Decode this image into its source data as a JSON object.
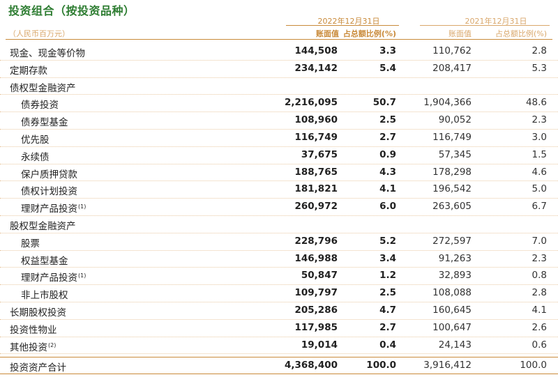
{
  "title": "投资组合（按投资品种）",
  "unit": "（人民币百万元）",
  "year_2022": "2022年12月31日",
  "year_2021": "2021年12月31日",
  "columns": {
    "value_2022": "账面值",
    "pct_2022": "占总额比例(%)",
    "value_2021": "账面值",
    "pct_2021": "占总额比例(%)"
  },
  "rows": [
    {
      "label": "现金、现金等价物",
      "note": "",
      "v1": "144,508",
      "v2": "3.3",
      "v3": "110,762",
      "v4": "2.8"
    },
    {
      "label": "定期存款",
      "note": "",
      "v1": "234,142",
      "v2": "5.4",
      "v3": "208,417",
      "v4": "5.3"
    },
    {
      "label": "债权型金融资产",
      "note": "",
      "v1": "",
      "v2": "",
      "v3": "",
      "v4": ""
    },
    {
      "label": "债券投资",
      "note": "",
      "v1": "2,216,095",
      "v2": "50.7",
      "v3": "1,904,366",
      "v4": "48.6"
    },
    {
      "label": "债券型基金",
      "note": "",
      "v1": "108,960",
      "v2": "2.5",
      "v3": "90,052",
      "v4": "2.3"
    },
    {
      "label": "优先股",
      "note": "",
      "v1": "116,749",
      "v2": "2.7",
      "v3": "116,749",
      "v4": "3.0"
    },
    {
      "label": "永续债",
      "note": "",
      "v1": "37,675",
      "v2": "0.9",
      "v3": "57,345",
      "v4": "1.5"
    },
    {
      "label": "保户质押贷款",
      "note": "",
      "v1": "188,765",
      "v2": "4.3",
      "v3": "178,298",
      "v4": "4.6"
    },
    {
      "label": "债权计划投资",
      "note": "",
      "v1": "181,821",
      "v2": "4.1",
      "v3": "196,542",
      "v4": "5.0"
    },
    {
      "label": "理财产品投资",
      "note": "(1)",
      "v1": "260,972",
      "v2": "6.0",
      "v3": "263,605",
      "v4": "6.7"
    },
    {
      "label": "股权型金融资产",
      "note": "",
      "v1": "",
      "v2": "",
      "v3": "",
      "v4": ""
    },
    {
      "label": "股票",
      "note": "",
      "v1": "228,796",
      "v2": "5.2",
      "v3": "272,597",
      "v4": "7.0"
    },
    {
      "label": "权益型基金",
      "note": "",
      "v1": "146,988",
      "v2": "3.4",
      "v3": "91,263",
      "v4": "2.3"
    },
    {
      "label": "理财产品投资",
      "note": "(1)",
      "v1": "50,847",
      "v2": "1.2",
      "v3": "32,893",
      "v4": "0.8"
    },
    {
      "label": "非上市股权",
      "note": "",
      "v1": "109,797",
      "v2": "2.5",
      "v3": "108,088",
      "v4": "2.8"
    },
    {
      "label": "长期股权投资",
      "note": "",
      "v1": "205,286",
      "v2": "4.7",
      "v3": "160,645",
      "v4": "4.1"
    },
    {
      "label": "投资性物业",
      "note": "",
      "v1": "117,985",
      "v2": "2.7",
      "v3": "100,647",
      "v4": "2.6"
    },
    {
      "label": "其他投资",
      "note": "(2)",
      "v1": "19,014",
      "v2": "0.4",
      "v3": "24,143",
      "v4": "0.6"
    },
    {
      "label": "投资资产合计",
      "note": "",
      "v1": "4,368,400",
      "v2": "100.0",
      "v3": "3,916,412",
      "v4": "100.0"
    }
  ]
}
